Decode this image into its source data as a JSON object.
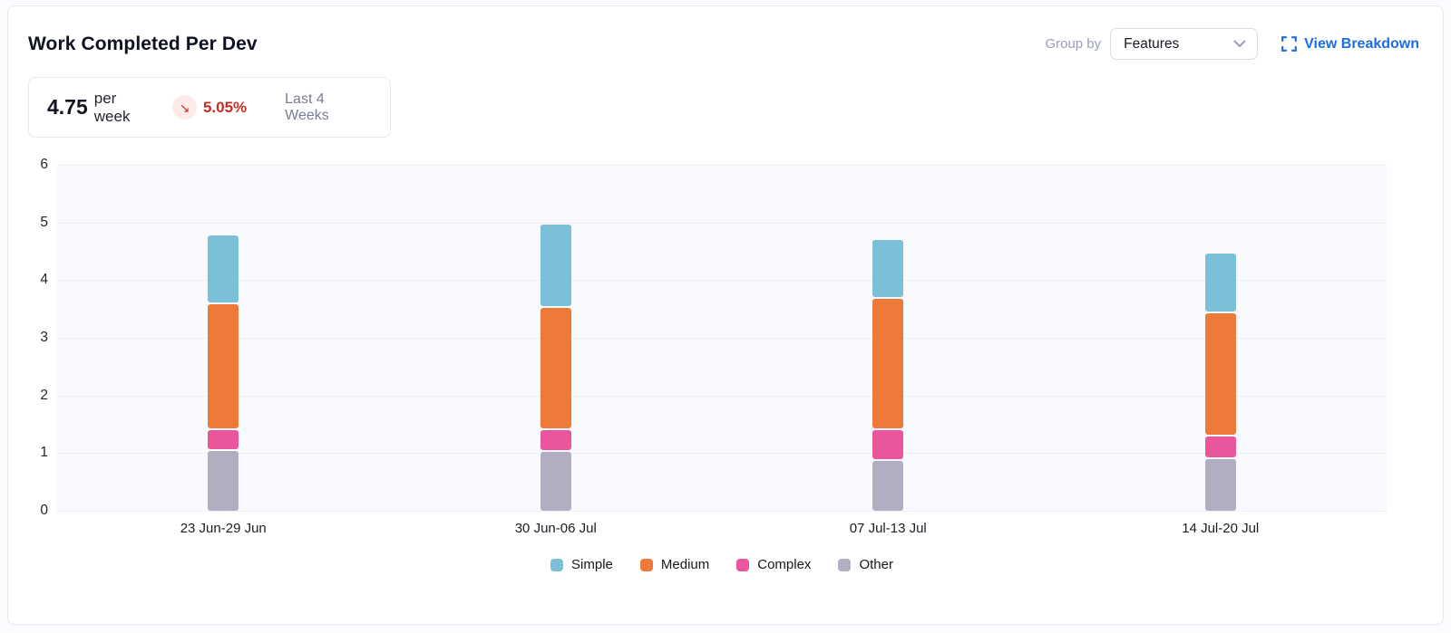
{
  "header": {
    "title": "Work Completed Per Dev",
    "group_by_label": "Group by",
    "group_by_value": "Features",
    "view_breakdown_label": "View Breakdown"
  },
  "stat": {
    "value": "4.75",
    "unit": "per week",
    "trend_arrow": "↘",
    "trend_value": "5.05%",
    "period": "Last 4 Weeks"
  },
  "chart_data": {
    "type": "bar",
    "stacked": true,
    "title": "Work Completed Per Dev",
    "xlabel": "",
    "ylabel": "",
    "ylim": [
      0,
      6
    ],
    "yticks": [
      0,
      1,
      2,
      3,
      4,
      5,
      6
    ],
    "grid": true,
    "legend_position": "bottom",
    "categories": [
      "23 Jun-29 Jun",
      "30 Jun-06 Jul",
      "07 Jul-13 Jul",
      "14 Jul-20 Jul"
    ],
    "series": [
      {
        "name": "Other",
        "color": "#b0afc2",
        "values": [
          1.04,
          1.02,
          0.86,
          0.89
        ]
      },
      {
        "name": "Complex",
        "color": "#eb559c",
        "values": [
          0.36,
          0.38,
          0.54,
          0.4
        ]
      },
      {
        "name": "Medium",
        "color": "#ee7a3a",
        "values": [
          2.18,
          2.12,
          2.28,
          2.13
        ]
      },
      {
        "name": "Simple",
        "color": "#7bbfd9",
        "values": [
          1.19,
          1.45,
          1.02,
          1.04
        ]
      }
    ],
    "totals": [
      4.77,
      4.97,
      4.7,
      4.46
    ],
    "legend": [
      {
        "label": "Simple",
        "color": "#7bbfd9"
      },
      {
        "label": "Medium",
        "color": "#ee7a3a"
      },
      {
        "label": "Complex",
        "color": "#eb559c"
      },
      {
        "label": "Other",
        "color": "#b0afc2"
      }
    ]
  },
  "colors": {
    "accent_link": "#1c6ce3",
    "trend_negative": "#c42d23",
    "trend_badge_bg": "#fcebe9",
    "plot_background": "#f9fafd",
    "gridline": "#edeff3",
    "card_border": "#e7eaf0"
  }
}
